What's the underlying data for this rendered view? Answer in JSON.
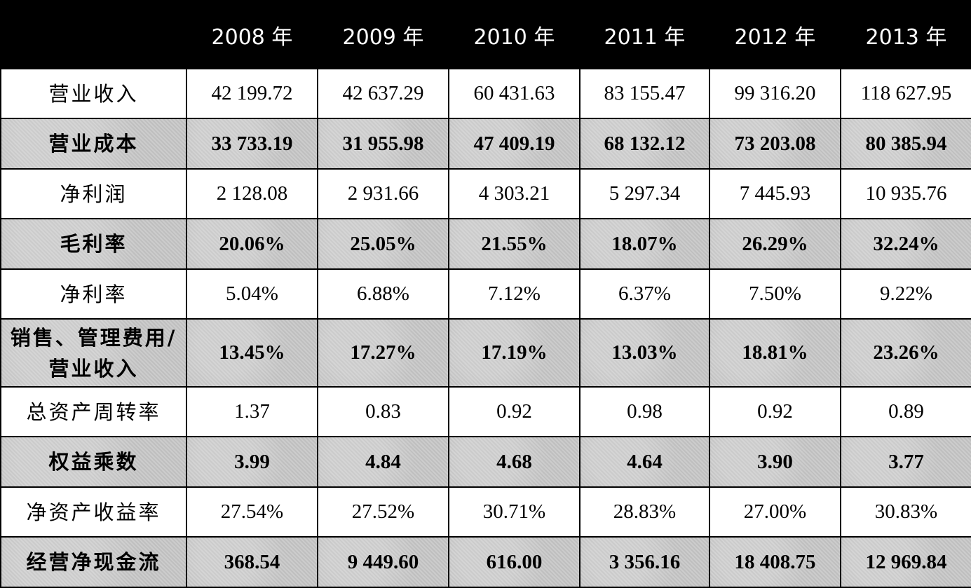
{
  "header": {
    "blank": "",
    "years": [
      "2008 年",
      "2009 年",
      "2010 年",
      "2011 年",
      "2012 年",
      "2013 年"
    ]
  },
  "rows": [
    {
      "label": "营业收入",
      "values": [
        "42 199.72",
        "42 637.29",
        "60 431.63",
        "83 155.47",
        "99 316.20",
        "118 627.95"
      ]
    },
    {
      "label": "营业成本",
      "values": [
        "33 733.19",
        "31 955.98",
        "47 409.19",
        "68 132.12",
        "73 203.08",
        "80 385.94"
      ]
    },
    {
      "label": "净利润",
      "values": [
        "2 128.08",
        "2 931.66",
        "4 303.21",
        "5 297.34",
        "7 445.93",
        "10 935.76"
      ]
    },
    {
      "label": "毛利率",
      "values": [
        "20.06%",
        "25.05%",
        "21.55%",
        "18.07%",
        "26.29%",
        "32.24%"
      ]
    },
    {
      "label": "净利率",
      "values": [
        "5.04%",
        "6.88%",
        "7.12%",
        "6.37%",
        "7.50%",
        "9.22%"
      ]
    },
    {
      "label_line1": "销售、管理费用/",
      "label_line2": "营业收入",
      "values": [
        "13.45%",
        "17.27%",
        "17.19%",
        "13.03%",
        "18.81%",
        "23.26%"
      ]
    },
    {
      "label": "总资产周转率",
      "values": [
        "1.37",
        "0.83",
        "0.92",
        "0.98",
        "0.92",
        "0.89"
      ]
    },
    {
      "label": "权益乘数",
      "values": [
        "3.99",
        "4.84",
        "4.68",
        "4.64",
        "3.90",
        "3.77"
      ]
    },
    {
      "label": "净资产收益率",
      "values": [
        "27.54%",
        "27.52%",
        "30.71%",
        "28.83%",
        "27.00%",
        "30.83%"
      ]
    },
    {
      "label": "经营净现金流",
      "values": [
        "368.54",
        "9 449.60",
        "616.00",
        "3 356.16",
        "18 408.75",
        "12 969.84"
      ]
    }
  ]
}
